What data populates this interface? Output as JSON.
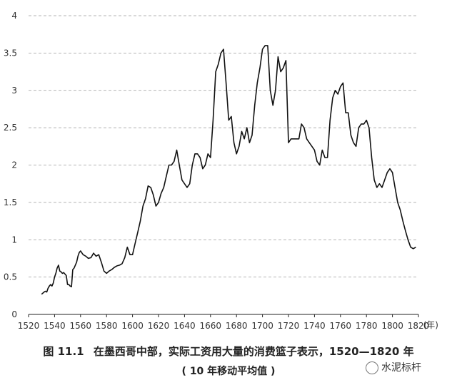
{
  "caption": {
    "figure_label": "图 11.1",
    "title": "在墨西哥中部，实际工资用大量的消费篮子表示，1520—1820 年",
    "subtitle": "( 10 年移动平均值 )"
  },
  "watermark": {
    "text": "水泥标杆"
  },
  "chart_data": {
    "type": "line",
    "title": "在墨西哥中部，实际工资用大量的消费篮子表示，1520—1820 年",
    "subtitle": "( 10 年移动平均值 )",
    "xlabel": "(年)",
    "ylabel": "",
    "xlim": [
      1520,
      1820
    ],
    "ylim": [
      0,
      4
    ],
    "xticks": [
      1520,
      1540,
      1560,
      1580,
      1600,
      1620,
      1640,
      1660,
      1680,
      1700,
      1720,
      1740,
      1760,
      1780,
      1800,
      1820
    ],
    "yticks": [
      0,
      0.5,
      1,
      1.5,
      2,
      2.5,
      3,
      3.5,
      4
    ],
    "grid": "horizontal dashed",
    "series": [
      {
        "name": "",
        "color": "#111111",
        "x": [
          1530,
          1532,
          1533,
          1534,
          1535,
          1536,
          1537,
          1538,
          1539,
          1540,
          1541,
          1542,
          1543,
          1544,
          1545,
          1546,
          1547,
          1548,
          1549,
          1550,
          1551,
          1552,
          1553,
          1554,
          1555,
          1556,
          1557,
          1558,
          1559,
          1560,
          1562,
          1564,
          1566,
          1568,
          1570,
          1572,
          1574,
          1576,
          1578,
          1580,
          1582,
          1584,
          1586,
          1588,
          1590,
          1592,
          1594,
          1596,
          1598,
          1600,
          1602,
          1604,
          1606,
          1608,
          1610,
          1612,
          1614,
          1616,
          1618,
          1620,
          1622,
          1624,
          1626,
          1628,
          1630,
          1632,
          1634,
          1636,
          1638,
          1640,
          1642,
          1644,
          1646,
          1648,
          1650,
          1652,
          1654,
          1656,
          1658,
          1660,
          1662,
          1664,
          1666,
          1668,
          1670,
          1672,
          1674,
          1676,
          1678,
          1680,
          1682,
          1684,
          1686,
          1688,
          1690,
          1692,
          1694,
          1696,
          1698,
          1700,
          1702,
          1704,
          1706,
          1708,
          1710,
          1712,
          1714,
          1716,
          1718,
          1720,
          1722,
          1724,
          1726,
          1728,
          1730,
          1732,
          1734,
          1736,
          1738,
          1740,
          1742,
          1744,
          1746,
          1748,
          1750,
          1752,
          1754,
          1756,
          1758,
          1760,
          1762,
          1764,
          1766,
          1768,
          1770,
          1772,
          1774,
          1776,
          1778,
          1780,
          1782,
          1784,
          1786,
          1788,
          1790,
          1792,
          1794,
          1796,
          1798,
          1800,
          1802,
          1804,
          1806,
          1808,
          1810,
          1812,
          1814,
          1816,
          1818
        ],
        "y": [
          0.27,
          0.3,
          0.31,
          0.3,
          0.35,
          0.38,
          0.4,
          0.38,
          0.42,
          0.5,
          0.55,
          0.62,
          0.66,
          0.58,
          0.57,
          0.55,
          0.56,
          0.54,
          0.52,
          0.4,
          0.4,
          0.38,
          0.37,
          0.6,
          0.62,
          0.66,
          0.7,
          0.78,
          0.83,
          0.85,
          0.8,
          0.78,
          0.75,
          0.76,
          0.82,
          0.78,
          0.8,
          0.7,
          0.58,
          0.55,
          0.58,
          0.6,
          0.63,
          0.65,
          0.66,
          0.68,
          0.76,
          0.9,
          0.8,
          0.8,
          0.95,
          1.1,
          1.25,
          1.45,
          1.55,
          1.72,
          1.7,
          1.6,
          1.45,
          1.5,
          1.62,
          1.7,
          1.85,
          2.0,
          2.0,
          2.05,
          2.2,
          2.0,
          1.8,
          1.75,
          1.7,
          1.75,
          2.0,
          2.15,
          2.15,
          2.1,
          1.95,
          2.0,
          2.15,
          2.1,
          2.6,
          3.25,
          3.35,
          3.5,
          3.55,
          3.1,
          2.6,
          2.65,
          2.3,
          2.15,
          2.25,
          2.45,
          2.35,
          2.5,
          2.3,
          2.4,
          2.8,
          3.1,
          3.3,
          3.55,
          3.6,
          3.6,
          3.0,
          2.8,
          3.0,
          3.45,
          3.25,
          3.3,
          3.4,
          2.3,
          2.35,
          2.35,
          2.35,
          2.35,
          2.55,
          2.5,
          2.35,
          2.3,
          2.25,
          2.2,
          2.05,
          2.0,
          2.2,
          2.1,
          2.1,
          2.6,
          2.9,
          3.0,
          2.95,
          3.05,
          3.1,
          2.7,
          2.7,
          2.4,
          2.3,
          2.25,
          2.5,
          2.55,
          2.55,
          2.6,
          2.5,
          2.1,
          1.8,
          1.7,
          1.75,
          1.7,
          1.8,
          1.9,
          1.95,
          1.9,
          1.7,
          1.5,
          1.4,
          1.25,
          1.12,
          1.0,
          0.9,
          0.88,
          0.9
        ]
      }
    ]
  }
}
